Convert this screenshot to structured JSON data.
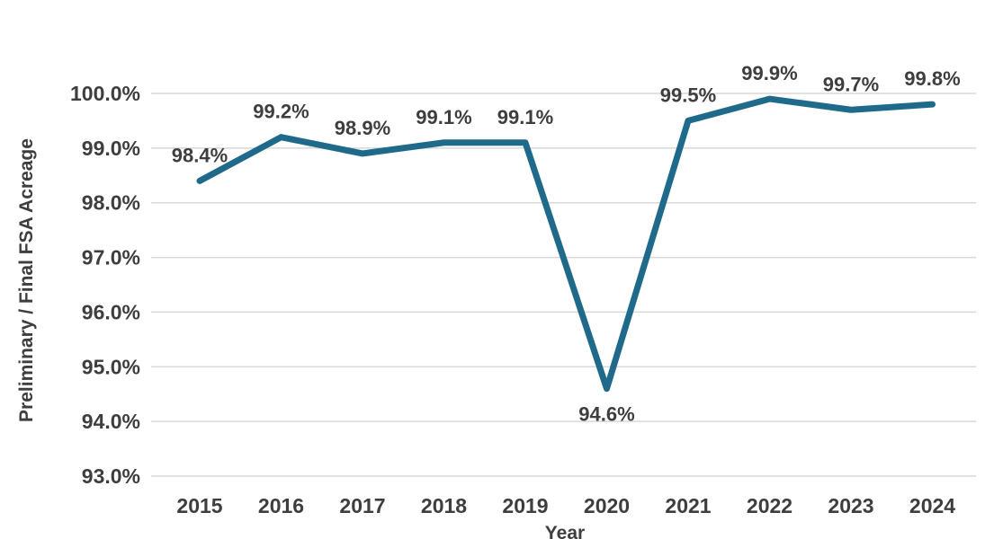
{
  "chart_data": {
    "type": "line",
    "title": "",
    "xlabel": "Year",
    "ylabel": "Preliminary / Final FSA Acreage",
    "categories": [
      "2015",
      "2016",
      "2017",
      "2018",
      "2019",
      "2020",
      "2021",
      "2022",
      "2023",
      "2024"
    ],
    "values": [
      98.4,
      99.2,
      98.9,
      99.1,
      99.1,
      94.6,
      99.5,
      99.9,
      99.7,
      99.8
    ],
    "point_labels": [
      "98.4%",
      "99.2%",
      "98.9%",
      "99.1%",
      "99.1%",
      "94.6%",
      "99.5%",
      "99.9%",
      "99.7%",
      "99.8%"
    ],
    "label_below_index": 5,
    "ylim": [
      93,
      100
    ],
    "y_ticks": [
      {
        "value": 100,
        "label": "100.0%"
      },
      {
        "value": 99,
        "label": "99.0%"
      },
      {
        "value": 98,
        "label": "98.0%"
      },
      {
        "value": 97,
        "label": "97.0%"
      },
      {
        "value": 96,
        "label": "96.0%"
      },
      {
        "value": 95,
        "label": "95.0%"
      },
      {
        "value": 94,
        "label": "94.0%"
      },
      {
        "value": 93,
        "label": "93.0%"
      }
    ],
    "grid": true,
    "legend": "none",
    "line_color": "#1f6a8b",
    "grid_color": "#d8d8d8",
    "text_color": "#3e3e3e"
  }
}
